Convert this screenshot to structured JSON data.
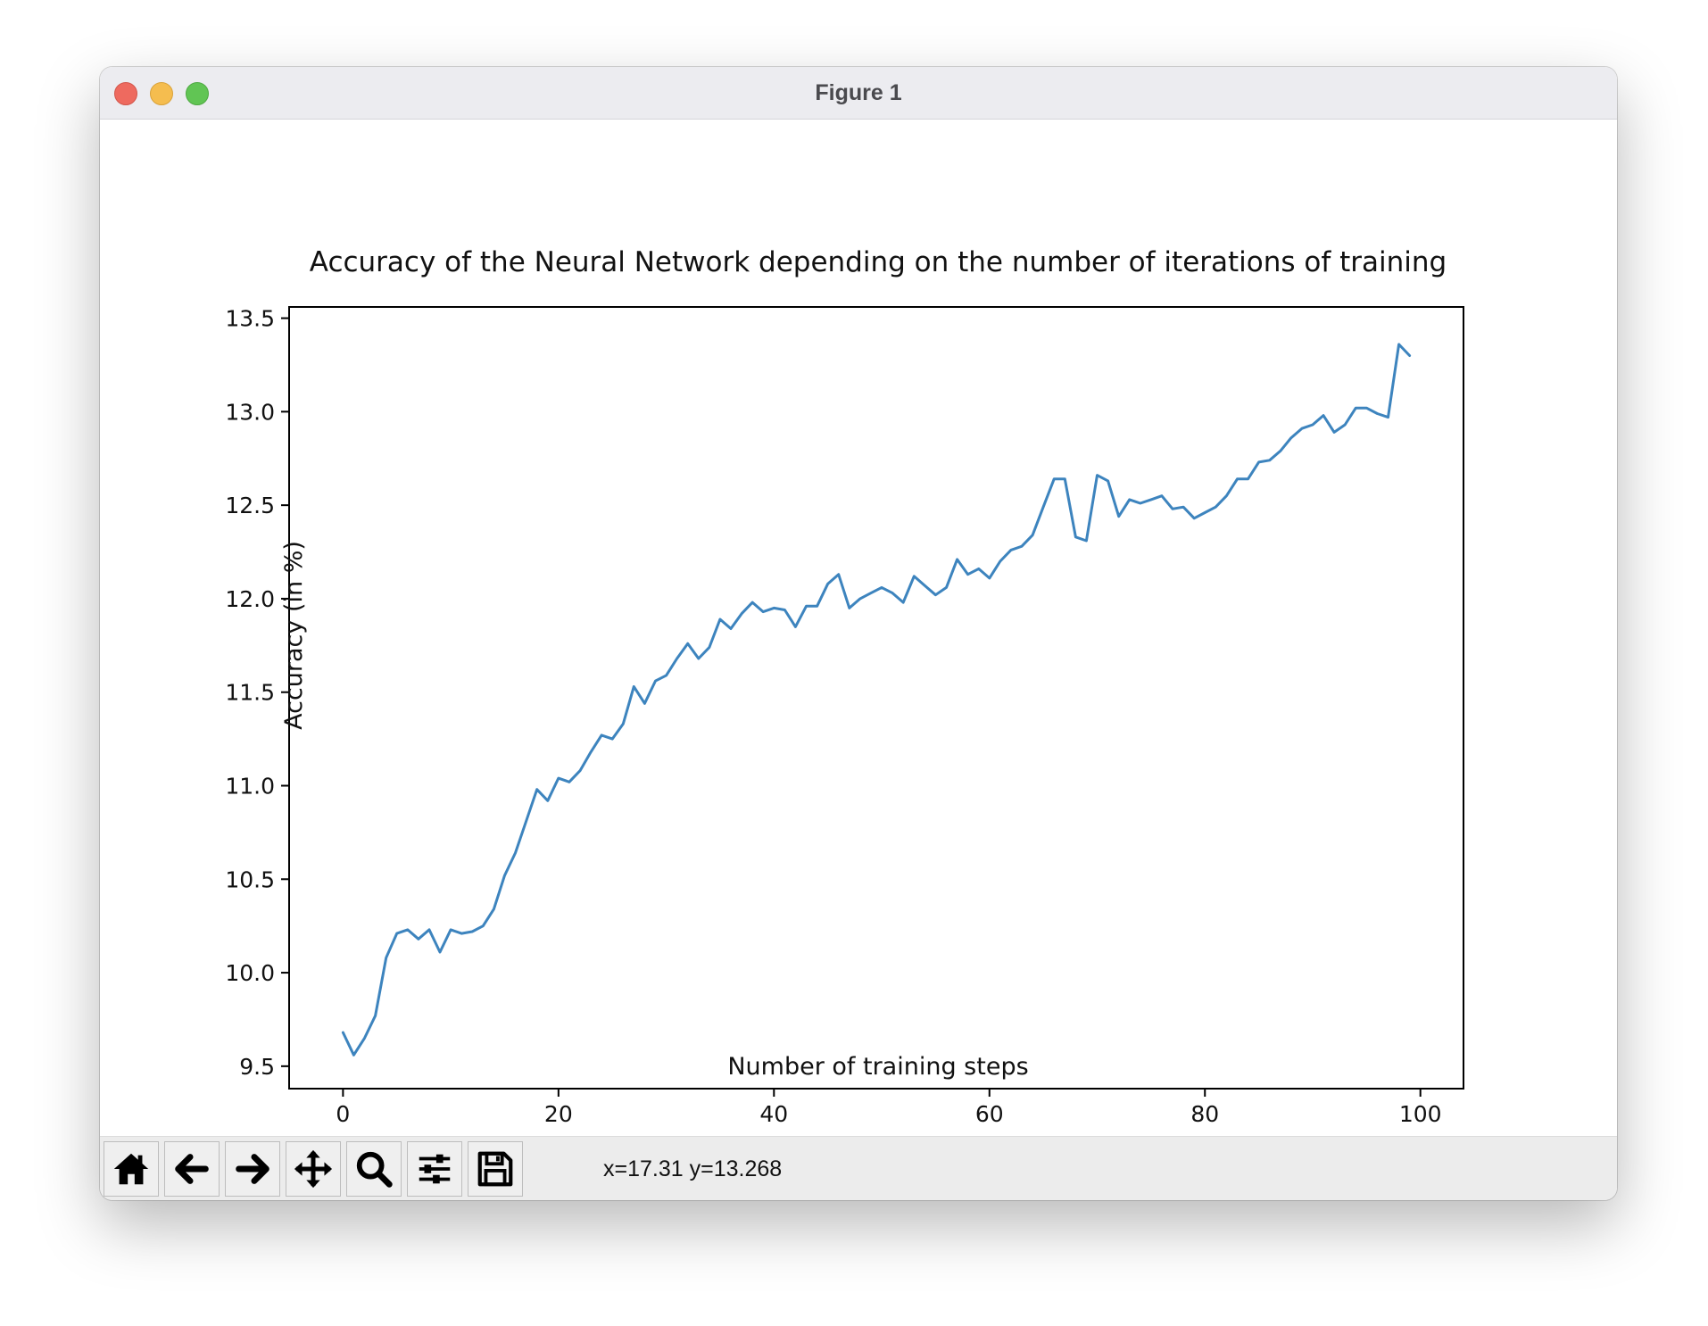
{
  "window": {
    "title": "Figure 1"
  },
  "toolbar": {
    "buttons": [
      {
        "name": "home-button",
        "icon": "home-icon"
      },
      {
        "name": "back-button",
        "icon": "arrow-left-icon"
      },
      {
        "name": "forward-button",
        "icon": "arrow-right-icon"
      },
      {
        "name": "pan-button",
        "icon": "move-icon"
      },
      {
        "name": "zoom-button",
        "icon": "magnifier-icon"
      },
      {
        "name": "configure-subplots-button",
        "icon": "sliders-icon"
      },
      {
        "name": "save-button",
        "icon": "floppy-disk-icon"
      }
    ],
    "coordinates": "x=17.31 y=13.268"
  },
  "chart_data": {
    "type": "line",
    "title": "Accuracy of the Neural Network depending on the number of iterations of training",
    "xlabel": "Number of training steps",
    "ylabel": "Accuracy (in %)",
    "xlim": [
      -5,
      104
    ],
    "ylim": [
      9.38,
      13.56
    ],
    "xticks": [
      0,
      20,
      40,
      60,
      80,
      100
    ],
    "yticks": [
      9.5,
      10.0,
      10.5,
      11.0,
      11.5,
      12.0,
      12.5,
      13.0,
      13.5
    ],
    "ytick_labels": [
      "9.5",
      "10.0",
      "10.5",
      "11.0",
      "11.5",
      "12.0",
      "12.5",
      "13.0",
      "13.5"
    ],
    "grid": false,
    "line_color": "#3d84be",
    "series": [
      {
        "x": [
          0,
          1,
          2,
          3,
          4,
          5,
          6,
          7,
          8,
          9,
          10,
          11,
          12,
          13,
          14,
          15,
          16,
          17,
          18,
          19,
          20,
          21,
          22,
          23,
          24,
          25,
          26,
          27,
          28,
          29,
          30,
          31,
          32,
          33,
          34,
          35,
          36,
          37,
          38,
          39,
          40,
          41,
          42,
          43,
          44,
          45,
          46,
          47,
          48,
          49,
          50,
          51,
          52,
          53,
          54,
          55,
          56,
          57,
          58,
          59,
          60,
          61,
          62,
          63,
          64,
          65,
          66,
          67,
          68,
          69,
          70,
          71,
          72,
          73,
          74,
          75,
          76,
          77,
          78,
          79,
          80,
          81,
          82,
          83,
          84,
          85,
          86,
          87,
          88,
          89,
          90,
          91,
          92,
          93,
          94,
          95,
          96,
          97,
          98,
          99
        ],
        "values": [
          9.68,
          9.56,
          9.65,
          9.77,
          10.08,
          10.21,
          10.23,
          10.18,
          10.23,
          10.11,
          10.23,
          10.21,
          10.22,
          10.25,
          10.34,
          10.52,
          10.64,
          10.81,
          10.98,
          10.92,
          11.04,
          11.02,
          11.08,
          11.18,
          11.27,
          11.25,
          11.33,
          11.53,
          11.44,
          11.56,
          11.59,
          11.68,
          11.76,
          11.68,
          11.74,
          11.89,
          11.84,
          11.92,
          11.98,
          11.93,
          11.95,
          11.94,
          11.85,
          11.96,
          11.96,
          12.08,
          12.13,
          11.95,
          12.0,
          12.03,
          12.06,
          12.03,
          11.98,
          12.12,
          12.07,
          12.02,
          12.06,
          12.21,
          12.13,
          12.16,
          12.11,
          12.2,
          12.26,
          12.28,
          12.34,
          12.49,
          12.64,
          12.64,
          12.33,
          12.31,
          12.66,
          12.63,
          12.44,
          12.53,
          12.51,
          12.53,
          12.55,
          12.48,
          12.49,
          12.43,
          12.46,
          12.49,
          12.55,
          12.64,
          12.64,
          12.73,
          12.74,
          12.79,
          12.86,
          12.91,
          12.93,
          12.98,
          12.89,
          12.93,
          13.02,
          13.02,
          12.99,
          12.97,
          13.36,
          13.3
        ]
      }
    ]
  }
}
